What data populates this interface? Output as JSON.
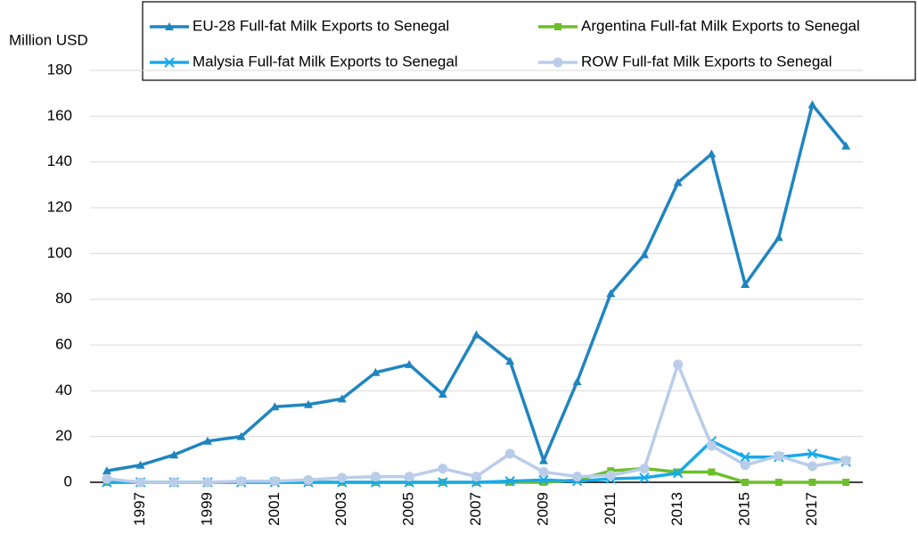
{
  "chart_data": {
    "type": "line",
    "y_unit_label": "Million USD",
    "categories": [
      null,
      "1997",
      null,
      "1999",
      null,
      "2001",
      null,
      "2003",
      null,
      "2005",
      null,
      "2007",
      null,
      "2009",
      null,
      "2011",
      null,
      "2013",
      null,
      "2015",
      null,
      "2017",
      null
    ],
    "series": [
      {
        "name": "EU-28 Full-fat Milk Exports to Senegal",
        "color": "#1f85c0",
        "marker": "triangle",
        "values": [
          5,
          7.5,
          12,
          18,
          20,
          33,
          34,
          36.5,
          48,
          51.5,
          38.5,
          64.5,
          53,
          9.5,
          44,
          82.5,
          99.5,
          131,
          143.5,
          86.5,
          107,
          165,
          147
        ]
      },
      {
        "name": "Argentina Full-fat Milk Exports to Senegal",
        "color": "#6cbf2a",
        "marker": "square",
        "values": [
          0,
          0,
          0,
          0,
          0,
          0,
          0,
          0,
          0,
          0,
          0,
          0,
          0,
          0,
          1,
          5,
          6,
          4.5,
          4.5,
          0,
          0,
          0,
          0
        ]
      },
      {
        "name": "Malysia Full-fat Milk Exports to Senegal",
        "color": "#18a9ea",
        "marker": "x",
        "values": [
          0,
          0,
          0,
          0,
          0,
          0,
          0,
          0,
          0,
          0,
          0,
          0,
          0.5,
          1,
          0.5,
          1.5,
          2,
          4,
          18,
          11,
          11,
          12.5,
          9
        ]
      },
      {
        "name": "ROW Full-fat Milk Exports to Senegal",
        "color": "#b9cde9",
        "marker": "circle",
        "values": [
          1.5,
          0,
          0,
          0,
          0.5,
          0.5,
          1,
          2,
          2.5,
          2.5,
          6,
          2.5,
          12.5,
          4.5,
          2.5,
          3,
          6,
          51.5,
          16,
          7.5,
          11.5,
          7,
          9.5
        ]
      }
    ],
    "ylim": [
      0,
      180
    ],
    "yticks": [
      0,
      20,
      40,
      60,
      80,
      100,
      120,
      140,
      160,
      180
    ],
    "grid": true
  }
}
